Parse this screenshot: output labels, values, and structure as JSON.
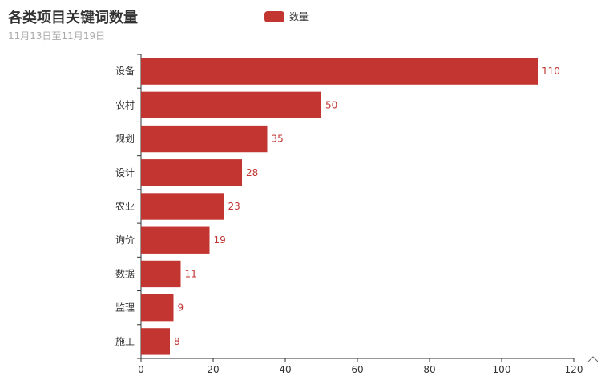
{
  "title": "各类项目关键词数量",
  "subtitle": "11月13日至11月19日",
  "legend": {
    "label": "数量",
    "color": "#c23531"
  },
  "chart_data": {
    "type": "bar",
    "orientation": "horizontal",
    "title": "各类项目关键词数量",
    "subtitle": "11月13日至11月19日",
    "categories": [
      "设备",
      "农村",
      "规划",
      "设计",
      "农业",
      "询价",
      "数据",
      "监理",
      "施工"
    ],
    "series": [
      {
        "name": "数量",
        "values": [
          110,
          50,
          35,
          28,
          23,
          19,
          11,
          9,
          8
        ],
        "color": "#c23531"
      }
    ],
    "xlim": [
      0,
      120
    ],
    "xticks": [
      0,
      20,
      40,
      60,
      80,
      100,
      120
    ],
    "data_labels": true,
    "legend_position": "top-center",
    "grid": false
  }
}
